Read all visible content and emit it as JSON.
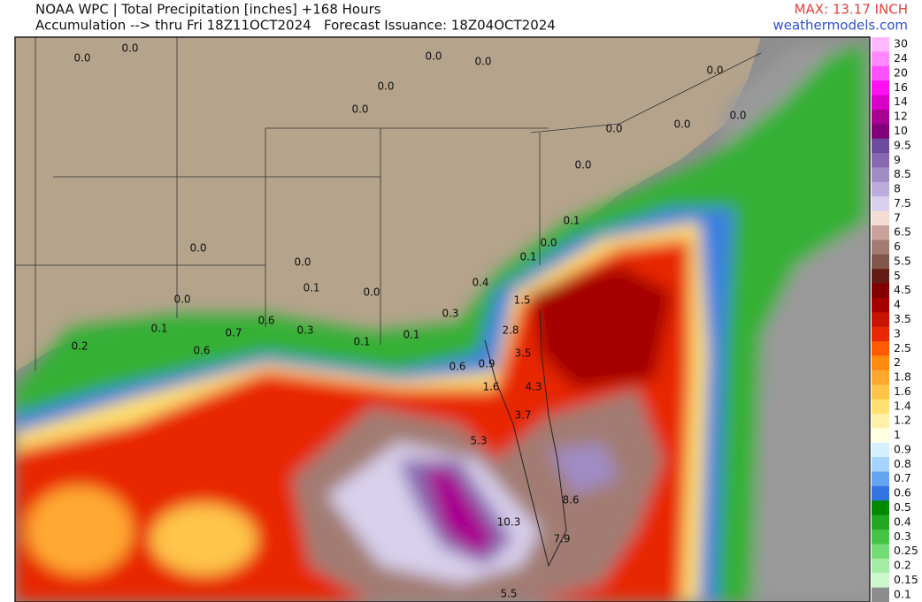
{
  "header": {
    "title": "NOAA WPC | Total Precipitation [inches] +168 Hours",
    "subtitle": "Accumulation --> thru Fri 18Z11OCT2024   Forecast Issuance: 18Z04OCT2024",
    "max": "MAX: 13.17 INCH",
    "source": "weathermodels.com"
  },
  "legend": {
    "levels": [
      "30",
      "24",
      "20",
      "16",
      "14",
      "12",
      "10",
      "9.5",
      "9",
      "8.5",
      "8",
      "7.5",
      "7",
      "6.5",
      "6",
      "5.5",
      "5",
      "4.5",
      "4",
      "3.5",
      "3",
      "2.5",
      "2",
      "1.8",
      "1.6",
      "1.4",
      "1.2",
      "1",
      "0.9",
      "0.8",
      "0.7",
      "0.6",
      "0.5",
      "0.4",
      "0.3",
      "0.25",
      "0.2",
      "0.15",
      "0.1"
    ],
    "colors": [
      "#ffb8ff",
      "#ff88ff",
      "#ff50ff",
      "#ff10f0",
      "#d800c8",
      "#a80090",
      "#800078",
      "#6c4c9c",
      "#8868b0",
      "#a08cc4",
      "#bcacdc",
      "#d8d0ec",
      "#f2dcd4",
      "#c9a39a",
      "#a27c72",
      "#82584e",
      "#621c14",
      "#820000",
      "#a40000",
      "#c81400",
      "#e82800",
      "#ff5a00",
      "#ff8a10",
      "#ffa830",
      "#ffc448",
      "#ffe070",
      "#fff2a8",
      "#ffffe4",
      "#d4f0ff",
      "#a4d4ff",
      "#64a4f0",
      "#3474e0",
      "#008a00",
      "#24a824",
      "#44c444",
      "#74dc74",
      "#a4eca4",
      "#ccf6cc",
      "#8c8c8c"
    ]
  },
  "map": {
    "labels": [
      "0.0",
      "0.0",
      "0.0",
      "0.0",
      "0.0",
      "0.0",
      "0.0",
      "0.0",
      "0.0",
      "0.0",
      "0.0",
      "0.0",
      "0.0",
      "0.0",
      "0.0",
      "0.1",
      "0.0",
      "0.1",
      "0.1",
      "0.1",
      "0.1",
      "0.1",
      "0.2",
      "0.4",
      "0.3",
      "0.6",
      "0.6",
      "0.6",
      "0.7",
      "0.3",
      "1.5",
      "2.8",
      "3.5",
      "0.9",
      "1.6",
      "4.3",
      "3.7",
      "5.3",
      "8.6",
      "10.3",
      "7.9",
      "5.5"
    ]
  }
}
